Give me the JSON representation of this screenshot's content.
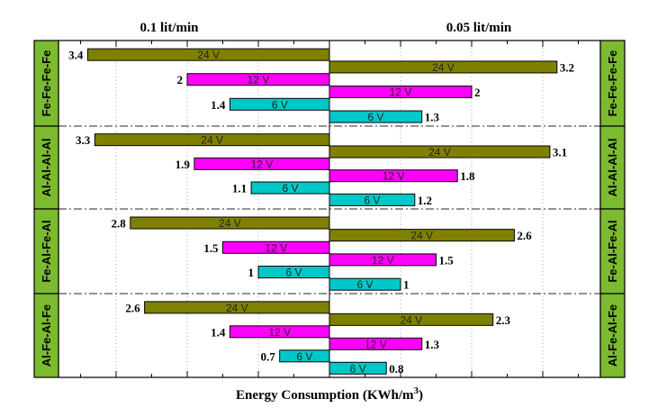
{
  "chart_data": {
    "type": "bar",
    "orientation": "horizontal-diverging",
    "xlabel": "Energy Consumption (KWh/m",
    "xlabel_superscript": "3",
    "xlabel_close": ")",
    "left_panel_title": "0.1 lit/min",
    "right_panel_title": "0.05 lit/min",
    "xlim": [
      -3.8,
      3.8
    ],
    "colors": {
      "24 V": "#808000",
      "12 V": "#ff00ff",
      "6 V": "#00c8c8",
      "group_label_bg": "#7cba2f"
    },
    "groups": [
      {
        "label": "Fe-Fe-Fe-Fe",
        "left": [
          {
            "voltage": "24 V",
            "value": 3.4,
            "label": "3.4"
          },
          {
            "voltage": "12 V",
            "value": 2.0,
            "label": "2"
          },
          {
            "voltage": "6 V",
            "value": 1.4,
            "label": "1.4"
          }
        ],
        "right": [
          {
            "voltage": "24 V",
            "value": 3.2,
            "label": "3.2"
          },
          {
            "voltage": "12 V",
            "value": 2.0,
            "label": "2"
          },
          {
            "voltage": "6 V",
            "value": 1.3,
            "label": "1.3"
          }
        ]
      },
      {
        "label": "Al-Al-Al-Al",
        "left": [
          {
            "voltage": "24 V",
            "value": 3.3,
            "label": "3.3"
          },
          {
            "voltage": "12 V",
            "value": 1.9,
            "label": "1.9"
          },
          {
            "voltage": "6 V",
            "value": 1.1,
            "label": "1.1"
          }
        ],
        "right": [
          {
            "voltage": "24 V",
            "value": 3.1,
            "label": "3.1"
          },
          {
            "voltage": "12 V",
            "value": 1.8,
            "label": "1.8"
          },
          {
            "voltage": "6 V",
            "value": 1.2,
            "label": "1.2"
          }
        ]
      },
      {
        "label": "Fe-Al-Fe-Al",
        "left": [
          {
            "voltage": "24 V",
            "value": 2.8,
            "label": "2.8"
          },
          {
            "voltage": "12 V",
            "value": 1.5,
            "label": "1.5"
          },
          {
            "voltage": "6 V",
            "value": 1.0,
            "label": "1"
          }
        ],
        "right": [
          {
            "voltage": "24 V",
            "value": 2.6,
            "label": "2.6"
          },
          {
            "voltage": "12 V",
            "value": 1.5,
            "label": "1.5"
          },
          {
            "voltage": "6 V",
            "value": 1.0,
            "label": "1"
          }
        ]
      },
      {
        "label": "Al-Fe-Al-Fe",
        "left": [
          {
            "voltage": "24 V",
            "value": 2.6,
            "label": "2.6"
          },
          {
            "voltage": "12 V",
            "value": 1.4,
            "label": "1.4"
          },
          {
            "voltage": "6 V",
            "value": 0.7,
            "label": "0.7"
          }
        ],
        "right": [
          {
            "voltage": "24 V",
            "value": 2.3,
            "label": "2.3"
          },
          {
            "voltage": "12 V",
            "value": 1.3,
            "label": "1.3"
          },
          {
            "voltage": "6 V",
            "value": 0.8,
            "label": "0.8"
          }
        ]
      }
    ]
  }
}
